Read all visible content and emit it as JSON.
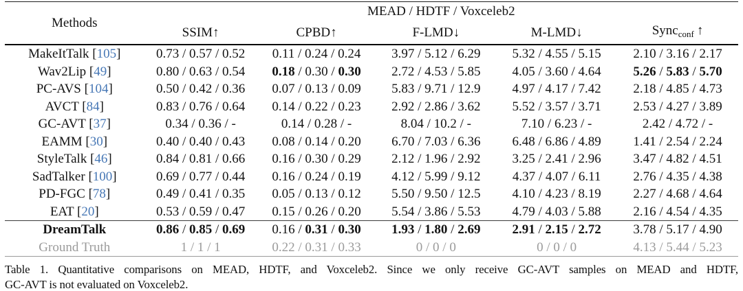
{
  "colors": {
    "citation_blue": "#4677b5",
    "ground_truth_gray": "#9b9b9b",
    "rule_black": "#000000"
  },
  "table": {
    "methods_header": "Methods",
    "group_header": "MEAD / HDTF / Voxceleb2",
    "separator": " / ",
    "columns": [
      {
        "label": "SSIM",
        "arrow": "↑"
      },
      {
        "label": "CPBD",
        "arrow": "↑"
      },
      {
        "label": "F-LMD",
        "arrow": "↓"
      },
      {
        "label": "M-LMD",
        "arrow": "↓"
      },
      {
        "label": "Sync",
        "sub": "conf",
        "arrow": "↑"
      }
    ],
    "rows": [
      {
        "method": "MakeItTalk",
        "citation": "105",
        "bold_method": false,
        "gray": false,
        "rule_above": false,
        "cells": [
          {
            "values": [
              "0.73",
              "0.57",
              "0.52"
            ],
            "bold": [
              false,
              false,
              false
            ]
          },
          {
            "values": [
              "0.11",
              "0.24",
              "0.24"
            ],
            "bold": [
              false,
              false,
              false
            ]
          },
          {
            "values": [
              "3.97",
              "5.12",
              "6.29"
            ],
            "bold": [
              false,
              false,
              false
            ]
          },
          {
            "values": [
              "5.32",
              "4.55",
              "5.15"
            ],
            "bold": [
              false,
              false,
              false
            ]
          },
          {
            "values": [
              "2.10",
              "3.16",
              "2.17"
            ],
            "bold": [
              false,
              false,
              false
            ]
          }
        ]
      },
      {
        "method": "Wav2Lip",
        "citation": "49",
        "bold_method": false,
        "gray": false,
        "rule_above": false,
        "cells": [
          {
            "values": [
              "0.80",
              "0.63",
              "0.54"
            ],
            "bold": [
              false,
              false,
              false
            ]
          },
          {
            "values": [
              "0.18",
              "0.30",
              "0.30"
            ],
            "bold": [
              true,
              false,
              true
            ]
          },
          {
            "values": [
              "2.72",
              "4.53",
              "5.85"
            ],
            "bold": [
              false,
              false,
              false
            ]
          },
          {
            "values": [
              "4.05",
              "3.60",
              "4.64"
            ],
            "bold": [
              false,
              false,
              false
            ]
          },
          {
            "values": [
              "5.26",
              "5.83",
              "5.70"
            ],
            "bold": [
              true,
              true,
              true
            ]
          }
        ]
      },
      {
        "method": "PC-AVS",
        "citation": "104",
        "bold_method": false,
        "gray": false,
        "rule_above": false,
        "cells": [
          {
            "values": [
              "0.50",
              "0.42",
              "0.36"
            ],
            "bold": [
              false,
              false,
              false
            ]
          },
          {
            "values": [
              "0.07",
              "0.13",
              "0.09"
            ],
            "bold": [
              false,
              false,
              false
            ]
          },
          {
            "values": [
              "5.83",
              "9.71",
              "12.9"
            ],
            "bold": [
              false,
              false,
              false
            ]
          },
          {
            "values": [
              "4.97",
              "4.17",
              "7.42"
            ],
            "bold": [
              false,
              false,
              false
            ]
          },
          {
            "values": [
              "2.18",
              "4.85",
              "4.73"
            ],
            "bold": [
              false,
              false,
              false
            ]
          }
        ]
      },
      {
        "method": "AVCT",
        "citation": "84",
        "bold_method": false,
        "gray": false,
        "rule_above": false,
        "cells": [
          {
            "values": [
              "0.83",
              "0.76",
              "0.64"
            ],
            "bold": [
              false,
              false,
              false
            ]
          },
          {
            "values": [
              "0.14",
              "0.22",
              "0.23"
            ],
            "bold": [
              false,
              false,
              false
            ]
          },
          {
            "values": [
              "2.92",
              "2.86",
              "3.62"
            ],
            "bold": [
              false,
              false,
              false
            ]
          },
          {
            "values": [
              "5.52",
              "3.57",
              "3.71"
            ],
            "bold": [
              false,
              false,
              false
            ]
          },
          {
            "values": [
              "2.53",
              "4.27",
              "3.89"
            ],
            "bold": [
              false,
              false,
              false
            ]
          }
        ]
      },
      {
        "method": "GC-AVT",
        "citation": "37",
        "bold_method": false,
        "gray": false,
        "rule_above": false,
        "cells": [
          {
            "values": [
              "0.34",
              "0.36",
              "-"
            ],
            "bold": [
              false,
              false,
              false
            ]
          },
          {
            "values": [
              "0.14",
              "0.28",
              "-"
            ],
            "bold": [
              false,
              false,
              false
            ]
          },
          {
            "values": [
              "8.04",
              "10.2",
              "-"
            ],
            "bold": [
              false,
              false,
              false
            ]
          },
          {
            "values": [
              "7.10",
              "6.23",
              "-"
            ],
            "bold": [
              false,
              false,
              false
            ]
          },
          {
            "values": [
              "2.42",
              "4.72",
              "-"
            ],
            "bold": [
              false,
              false,
              false
            ]
          }
        ]
      },
      {
        "method": "EAMM",
        "citation": "30",
        "bold_method": false,
        "gray": false,
        "rule_above": false,
        "cells": [
          {
            "values": [
              "0.40",
              "0.40",
              "0.43"
            ],
            "bold": [
              false,
              false,
              false
            ]
          },
          {
            "values": [
              "0.08",
              "0.14",
              "0.20"
            ],
            "bold": [
              false,
              false,
              false
            ]
          },
          {
            "values": [
              "6.70",
              "7.03",
              "6.36"
            ],
            "bold": [
              false,
              false,
              false
            ]
          },
          {
            "values": [
              "6.48",
              "6.86",
              "4.89"
            ],
            "bold": [
              false,
              false,
              false
            ]
          },
          {
            "values": [
              "1.41",
              "2.54",
              "2.24"
            ],
            "bold": [
              false,
              false,
              false
            ]
          }
        ]
      },
      {
        "method": "StyleTalk",
        "citation": "46",
        "bold_method": false,
        "gray": false,
        "rule_above": false,
        "cells": [
          {
            "values": [
              "0.84",
              "0.81",
              "0.66"
            ],
            "bold": [
              false,
              false,
              false
            ]
          },
          {
            "values": [
              "0.16",
              "0.30",
              "0.29"
            ],
            "bold": [
              false,
              false,
              false
            ]
          },
          {
            "values": [
              "2.12",
              "1.96",
              "2.92"
            ],
            "bold": [
              false,
              false,
              false
            ]
          },
          {
            "values": [
              "3.25",
              "2.41",
              "2.96"
            ],
            "bold": [
              false,
              false,
              false
            ]
          },
          {
            "values": [
              "3.47",
              "4.82",
              "4.51"
            ],
            "bold": [
              false,
              false,
              false
            ]
          }
        ]
      },
      {
        "method": "SadTalker",
        "citation": "100",
        "bold_method": false,
        "gray": false,
        "rule_above": false,
        "cells": [
          {
            "values": [
              "0.69",
              "0.77",
              "0.44"
            ],
            "bold": [
              false,
              false,
              false
            ]
          },
          {
            "values": [
              "0.16",
              "0.24",
              "0.19"
            ],
            "bold": [
              false,
              false,
              false
            ]
          },
          {
            "values": [
              "4.12",
              "5.99",
              "9.12"
            ],
            "bold": [
              false,
              false,
              false
            ]
          },
          {
            "values": [
              "4.37",
              "4.07",
              "6.11"
            ],
            "bold": [
              false,
              false,
              false
            ]
          },
          {
            "values": [
              "2.76",
              "4.35",
              "4.38"
            ],
            "bold": [
              false,
              false,
              false
            ]
          }
        ]
      },
      {
        "method": "PD-FGC",
        "citation": "78",
        "bold_method": false,
        "gray": false,
        "rule_above": false,
        "cells": [
          {
            "values": [
              "0.49",
              "0.41",
              "0.35"
            ],
            "bold": [
              false,
              false,
              false
            ]
          },
          {
            "values": [
              "0.05",
              "0.13",
              "0.12"
            ],
            "bold": [
              false,
              false,
              false
            ]
          },
          {
            "values": [
              "5.50",
              "9.50",
              "12.5"
            ],
            "bold": [
              false,
              false,
              false
            ]
          },
          {
            "values": [
              "4.10",
              "4.23",
              "8.19"
            ],
            "bold": [
              false,
              false,
              false
            ]
          },
          {
            "values": [
              "2.27",
              "4.68",
              "4.64"
            ],
            "bold": [
              false,
              false,
              false
            ]
          }
        ]
      },
      {
        "method": "EAT",
        "citation": "20",
        "bold_method": false,
        "gray": false,
        "rule_above": false,
        "cells": [
          {
            "values": [
              "0.53",
              "0.59",
              "0.47"
            ],
            "bold": [
              false,
              false,
              false
            ]
          },
          {
            "values": [
              "0.15",
              "0.26",
              "0.20"
            ],
            "bold": [
              false,
              false,
              false
            ]
          },
          {
            "values": [
              "5.54",
              "3.86",
              "5.53"
            ],
            "bold": [
              false,
              false,
              false
            ]
          },
          {
            "values": [
              "4.79",
              "4.03",
              "5.88"
            ],
            "bold": [
              false,
              false,
              false
            ]
          },
          {
            "values": [
              "2.16",
              "4.54",
              "4.35"
            ],
            "bold": [
              false,
              false,
              false
            ]
          }
        ]
      },
      {
        "method": "DreamTalk",
        "citation": null,
        "bold_method": true,
        "gray": false,
        "rule_above": true,
        "cells": [
          {
            "values": [
              "0.86",
              "0.85",
              "0.69"
            ],
            "bold": [
              true,
              true,
              true
            ]
          },
          {
            "values": [
              "0.16",
              "0.31",
              "0.30"
            ],
            "bold": [
              false,
              true,
              true
            ]
          },
          {
            "values": [
              "1.93",
              "1.80",
              "2.69"
            ],
            "bold": [
              true,
              true,
              true
            ]
          },
          {
            "values": [
              "2.91",
              "2.15",
              "2.72"
            ],
            "bold": [
              true,
              true,
              true
            ]
          },
          {
            "values": [
              "3.78",
              "5.17",
              "4.90"
            ],
            "bold": [
              false,
              false,
              false
            ]
          }
        ]
      },
      {
        "method": "Ground Truth",
        "citation": null,
        "bold_method": false,
        "gray": true,
        "rule_above": false,
        "cells": [
          {
            "values": [
              "1",
              "1",
              "1"
            ],
            "bold": [
              false,
              false,
              false
            ]
          },
          {
            "values": [
              "0.22",
              "0.31",
              "0.33"
            ],
            "bold": [
              false,
              false,
              false
            ]
          },
          {
            "values": [
              "0",
              "0",
              "0"
            ],
            "bold": [
              false,
              false,
              false
            ]
          },
          {
            "values": [
              "0",
              "0",
              "0"
            ],
            "bold": [
              false,
              false,
              false
            ]
          },
          {
            "values": [
              "4.13",
              "5.44",
              "5.23"
            ],
            "bold": [
              false,
              false,
              false
            ]
          }
        ]
      }
    ]
  },
  "caption": {
    "line1": "Table 1.  Quantitative comparisons on MEAD, HDTF, and Voxceleb2.  Since we only receive GC-AVT samples on MEAD and HDTF,",
    "line2": "GC-AVT is not evaluated on Voxceleb2."
  }
}
